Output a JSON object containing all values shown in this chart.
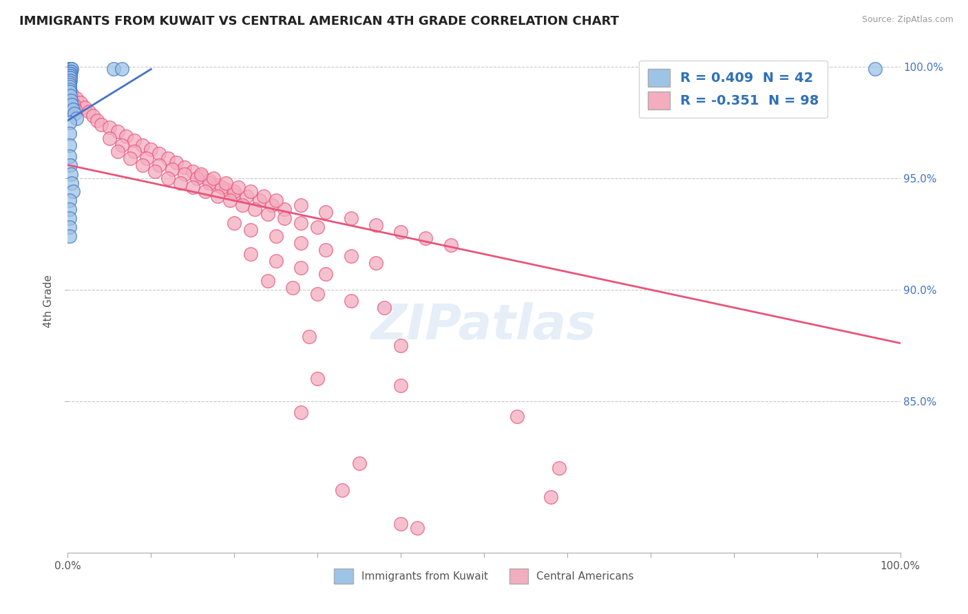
{
  "title": "IMMIGRANTS FROM KUWAIT VS CENTRAL AMERICAN 4TH GRADE CORRELATION CHART",
  "source_text": "Source: ZipAtlas.com",
  "ylabel": "4th Grade",
  "legend_entries": [
    {
      "label": "Immigrants from Kuwait",
      "color": "#aec6e8"
    },
    {
      "label": "Central Americans",
      "color": "#f4b8c8"
    }
  ],
  "legend_r_text_1": "R = 0.409  N = 42",
  "legend_r_text_2": "R = -0.351  N = 98",
  "legend_r_color": "#3070b8",
  "blue_scatter": [
    [
      0.002,
      0.999
    ],
    [
      0.003,
      0.999
    ],
    [
      0.004,
      0.999
    ],
    [
      0.005,
      0.999
    ],
    [
      0.002,
      0.998
    ],
    [
      0.003,
      0.998
    ],
    [
      0.004,
      0.998
    ],
    [
      0.002,
      0.997
    ],
    [
      0.003,
      0.997
    ],
    [
      0.002,
      0.996
    ],
    [
      0.003,
      0.996
    ],
    [
      0.002,
      0.995
    ],
    [
      0.003,
      0.995
    ],
    [
      0.002,
      0.994
    ],
    [
      0.003,
      0.994
    ],
    [
      0.002,
      0.993
    ],
    [
      0.002,
      0.992
    ],
    [
      0.002,
      0.991
    ],
    [
      0.002,
      0.99
    ],
    [
      0.002,
      0.989
    ],
    [
      0.003,
      0.987
    ],
    [
      0.004,
      0.985
    ],
    [
      0.005,
      0.983
    ],
    [
      0.006,
      0.981
    ],
    [
      0.008,
      0.979
    ],
    [
      0.01,
      0.977
    ],
    [
      0.002,
      0.975
    ],
    [
      0.002,
      0.97
    ],
    [
      0.055,
      0.999
    ],
    [
      0.065,
      0.999
    ],
    [
      0.97,
      0.999
    ],
    [
      0.002,
      0.965
    ],
    [
      0.002,
      0.96
    ],
    [
      0.003,
      0.956
    ],
    [
      0.004,
      0.952
    ],
    [
      0.005,
      0.948
    ],
    [
      0.006,
      0.944
    ],
    [
      0.002,
      0.94
    ],
    [
      0.002,
      0.936
    ],
    [
      0.002,
      0.932
    ],
    [
      0.002,
      0.928
    ],
    [
      0.002,
      0.924
    ]
  ],
  "pink_scatter": [
    [
      0.005,
      0.988
    ],
    [
      0.01,
      0.986
    ],
    [
      0.015,
      0.984
    ],
    [
      0.02,
      0.982
    ],
    [
      0.025,
      0.98
    ],
    [
      0.03,
      0.978
    ],
    [
      0.035,
      0.976
    ],
    [
      0.04,
      0.974
    ],
    [
      0.007,
      0.983
    ],
    [
      0.009,
      0.981
    ],
    [
      0.05,
      0.973
    ],
    [
      0.06,
      0.971
    ],
    [
      0.07,
      0.969
    ],
    [
      0.08,
      0.967
    ],
    [
      0.09,
      0.965
    ],
    [
      0.1,
      0.963
    ],
    [
      0.11,
      0.961
    ],
    [
      0.12,
      0.959
    ],
    [
      0.13,
      0.957
    ],
    [
      0.14,
      0.955
    ],
    [
      0.15,
      0.953
    ],
    [
      0.16,
      0.951
    ],
    [
      0.17,
      0.949
    ],
    [
      0.18,
      0.947
    ],
    [
      0.19,
      0.945
    ],
    [
      0.2,
      0.943
    ],
    [
      0.05,
      0.968
    ],
    [
      0.065,
      0.965
    ],
    [
      0.08,
      0.962
    ],
    [
      0.095,
      0.959
    ],
    [
      0.11,
      0.956
    ],
    [
      0.125,
      0.954
    ],
    [
      0.14,
      0.952
    ],
    [
      0.155,
      0.95
    ],
    [
      0.17,
      0.948
    ],
    [
      0.185,
      0.946
    ],
    [
      0.2,
      0.944
    ],
    [
      0.215,
      0.942
    ],
    [
      0.23,
      0.94
    ],
    [
      0.245,
      0.938
    ],
    [
      0.26,
      0.936
    ],
    [
      0.06,
      0.962
    ],
    [
      0.075,
      0.959
    ],
    [
      0.09,
      0.956
    ],
    [
      0.105,
      0.953
    ],
    [
      0.12,
      0.95
    ],
    [
      0.135,
      0.948
    ],
    [
      0.15,
      0.946
    ],
    [
      0.165,
      0.944
    ],
    [
      0.18,
      0.942
    ],
    [
      0.195,
      0.94
    ],
    [
      0.21,
      0.938
    ],
    [
      0.225,
      0.936
    ],
    [
      0.24,
      0.934
    ],
    [
      0.26,
      0.932
    ],
    [
      0.28,
      0.93
    ],
    [
      0.3,
      0.928
    ],
    [
      0.16,
      0.952
    ],
    [
      0.175,
      0.95
    ],
    [
      0.19,
      0.948
    ],
    [
      0.205,
      0.946
    ],
    [
      0.22,
      0.944
    ],
    [
      0.235,
      0.942
    ],
    [
      0.25,
      0.94
    ],
    [
      0.28,
      0.938
    ],
    [
      0.31,
      0.935
    ],
    [
      0.34,
      0.932
    ],
    [
      0.37,
      0.929
    ],
    [
      0.4,
      0.926
    ],
    [
      0.43,
      0.923
    ],
    [
      0.46,
      0.92
    ],
    [
      0.2,
      0.93
    ],
    [
      0.22,
      0.927
    ],
    [
      0.25,
      0.924
    ],
    [
      0.28,
      0.921
    ],
    [
      0.31,
      0.918
    ],
    [
      0.34,
      0.915
    ],
    [
      0.37,
      0.912
    ],
    [
      0.22,
      0.916
    ],
    [
      0.25,
      0.913
    ],
    [
      0.28,
      0.91
    ],
    [
      0.31,
      0.907
    ],
    [
      0.24,
      0.904
    ],
    [
      0.27,
      0.901
    ],
    [
      0.3,
      0.898
    ],
    [
      0.34,
      0.895
    ],
    [
      0.38,
      0.892
    ],
    [
      0.29,
      0.879
    ],
    [
      0.4,
      0.875
    ],
    [
      0.3,
      0.86
    ],
    [
      0.4,
      0.857
    ],
    [
      0.28,
      0.845
    ],
    [
      0.54,
      0.843
    ],
    [
      0.35,
      0.822
    ],
    [
      0.59,
      0.82
    ],
    [
      0.33,
      0.81
    ],
    [
      0.58,
      0.807
    ],
    [
      0.4,
      0.795
    ],
    [
      0.42,
      0.793
    ]
  ],
  "blue_line_x": [
    0.0,
    0.1
  ],
  "blue_line_y_start": 0.976,
  "blue_line_y_end": 0.999,
  "pink_line_x": [
    0.0,
    1.0
  ],
  "pink_line_y_start": 0.956,
  "pink_line_y_end": 0.876,
  "blue_line_color": "#4472C4",
  "pink_line_color": "#E8547A",
  "blue_dot_color": "#9DC3E6",
  "pink_dot_color": "#F4ACBF",
  "background_color": "#ffffff",
  "grid_color": "#c8c8c8",
  "title_color": "#222222",
  "axis_label_color": "#555555",
  "right_label_color": "#4472C4",
  "x_min": 0.0,
  "x_max": 1.0,
  "y_min": 0.782,
  "y_max": 1.008,
  "y_ticks": [
    0.85,
    0.9,
    0.95,
    1.0
  ],
  "y_tick_labels_right": [
    "85.0%",
    "90.0%",
    "95.0%",
    "100.0%"
  ]
}
